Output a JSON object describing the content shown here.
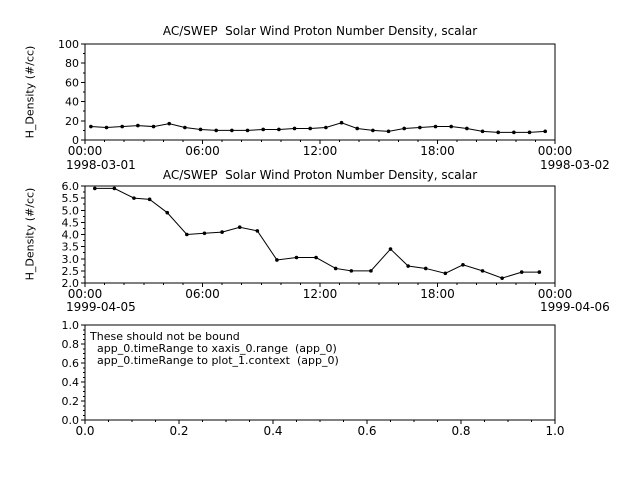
{
  "window": {
    "background": "#ffffff",
    "foreground": "#000000"
  },
  "chart_data": [
    {
      "type": "line",
      "title": "AC/SWEP  Solar Wind Proton Number Density, scalar",
      "ylabel": "H_Density (#/cc)",
      "xlabel": "",
      "xlim": [
        0,
        24
      ],
      "ylim": [
        0,
        100
      ],
      "x_ticks": [
        0,
        6,
        12,
        18,
        24
      ],
      "x_tick_labels": [
        "00:00",
        "06:00",
        "12:00",
        "18:00",
        "00:00"
      ],
      "x_minor_step": 1,
      "y_ticks": [
        0,
        20,
        40,
        60,
        80,
        100
      ],
      "y_tick_labels": [
        "0",
        "20",
        "40",
        "60",
        "80",
        "100"
      ],
      "y_minor_step": 10,
      "x_left_date": "1998-03-01",
      "x_right_date": "1998-03-02",
      "marker": "dot",
      "line_color": "#000000",
      "x": [
        0.3,
        1.1,
        1.9,
        2.7,
        3.5,
        4.3,
        5.1,
        5.9,
        6.7,
        7.5,
        8.3,
        9.1,
        9.9,
        10.7,
        11.5,
        12.3,
        13.1,
        13.9,
        14.7,
        15.5,
        16.3,
        17.1,
        17.9,
        18.7,
        19.5,
        20.3,
        21.1,
        21.9,
        22.7,
        23.5
      ],
      "y": [
        14,
        13,
        14,
        15,
        14,
        17,
        13,
        11,
        10,
        10,
        10,
        11,
        11,
        12,
        12,
        13,
        18,
        12,
        10,
        9,
        12,
        13,
        14,
        14,
        12,
        9,
        8,
        8,
        8,
        9
      ]
    },
    {
      "type": "line",
      "title": "AC/SWEP  Solar Wind Proton Number Density, scalar",
      "ylabel": "H_Density (#/cc)",
      "xlabel": "",
      "xlim": [
        0,
        24
      ],
      "ylim": [
        2.0,
        6.0
      ],
      "x_ticks": [
        0,
        6,
        12,
        18,
        24
      ],
      "x_tick_labels": [
        "00:00",
        "06:00",
        "12:00",
        "18:00",
        "00:00"
      ],
      "x_minor_step": 1,
      "y_ticks": [
        2.0,
        2.5,
        3.0,
        3.5,
        4.0,
        4.5,
        5.0,
        5.5,
        6.0
      ],
      "y_tick_labels": [
        "2.0",
        "2.5",
        "3.0",
        "3.5",
        "4.0",
        "4.5",
        "5.0",
        "5.5",
        "6.0"
      ],
      "y_minor_step": 0.25,
      "x_left_date": "1999-04-05",
      "x_right_date": "1999-04-06",
      "marker": "dot",
      "line_color": "#000000",
      "x": [
        0.5,
        1.5,
        2.5,
        3.3,
        4.2,
        5.2,
        6.1,
        7.0,
        7.9,
        8.8,
        9.8,
        10.8,
        11.8,
        12.8,
        13.6,
        14.6,
        15.6,
        16.5,
        17.4,
        18.4,
        19.3,
        20.3,
        21.3,
        22.3,
        23.2
      ],
      "y": [
        5.9,
        5.9,
        5.5,
        5.45,
        4.9,
        4.0,
        4.05,
        4.1,
        4.3,
        4.15,
        2.95,
        3.05,
        3.05,
        2.6,
        2.5,
        2.5,
        3.4,
        2.7,
        2.6,
        2.4,
        2.75,
        2.5,
        2.2,
        2.45,
        2.45
      ]
    },
    {
      "type": "empty",
      "title": "",
      "ylabel": "",
      "xlabel": "",
      "xlim": [
        0,
        1
      ],
      "ylim": [
        0,
        1
      ],
      "x_ticks": [
        0,
        0.2,
        0.4,
        0.6,
        0.8,
        1.0
      ],
      "x_tick_labels": [
        "0.0",
        "0.2",
        "0.4",
        "0.6",
        "0.8",
        "1.0"
      ],
      "x_minor_step": 0.05,
      "y_ticks": [
        0,
        0.2,
        0.4,
        0.6,
        0.8,
        1.0
      ],
      "y_tick_labels": [
        "0.0",
        "0.2",
        "0.4",
        "0.6",
        "0.8",
        "1.0"
      ],
      "y_minor_step": 0.05,
      "annotation": [
        "These should not be bound",
        "app_0.timeRange to xaxis_0.range  (app_0)",
        "app_0.timeRange to plot_1.context  (app_0)"
      ]
    }
  ]
}
